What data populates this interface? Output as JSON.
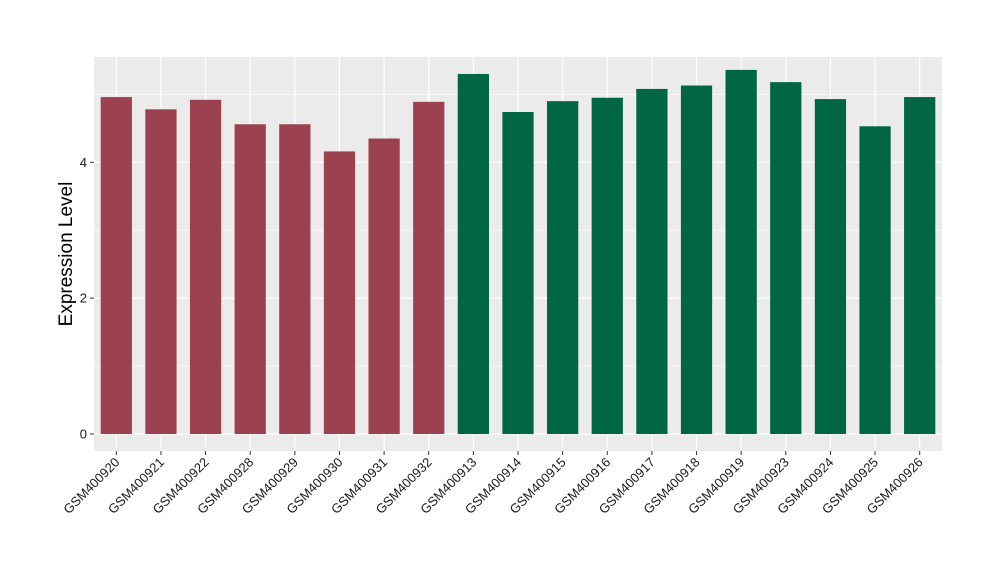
{
  "chart_data": {
    "type": "bar",
    "title": "",
    "xlabel": "",
    "ylabel": "Expression Level",
    "ylim": [
      -0.25,
      5.55
    ],
    "yticks": [
      0,
      2,
      4
    ],
    "grid": true,
    "legend": "none",
    "categories": [
      "GSM400920",
      "GSM400921",
      "GSM400922",
      "GSM400928",
      "GSM400929",
      "GSM400930",
      "GSM400931",
      "GSM400932",
      "GSM400913",
      "GSM400914",
      "GSM400915",
      "GSM400916",
      "GSM400917",
      "GSM400918",
      "GSM400919",
      "GSM400923",
      "GSM400924",
      "GSM400925",
      "GSM400926"
    ],
    "values": [
      4.96,
      4.78,
      4.92,
      4.56,
      4.56,
      4.16,
      4.35,
      4.89,
      5.3,
      4.74,
      4.9,
      4.95,
      5.08,
      5.13,
      5.36,
      5.18,
      4.93,
      4.53,
      4.96
    ],
    "groups": [
      "a",
      "a",
      "a",
      "a",
      "a",
      "a",
      "a",
      "a",
      "b",
      "b",
      "b",
      "b",
      "b",
      "b",
      "b",
      "b",
      "b",
      "b",
      "b"
    ],
    "colors": {
      "a": "#9b4150",
      "b": "#006644"
    },
    "panel_background": "#ebebeb",
    "grid_color": "#ffffff"
  }
}
